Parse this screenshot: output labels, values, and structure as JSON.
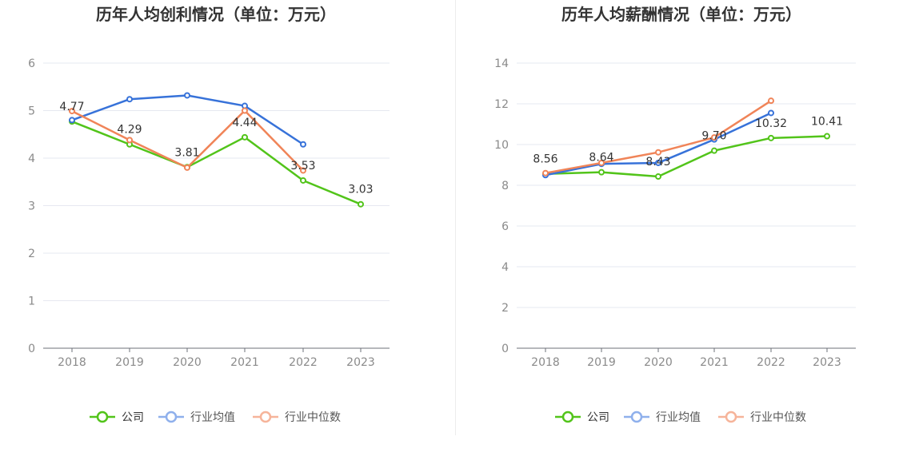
{
  "charts": [
    {
      "title": "历年人均创利情况（单位：万元）",
      "chart_data": {
        "type": "line",
        "title": "历年人均创利情况（单位：万元）",
        "categories": [
          "2018",
          "2019",
          "2020",
          "2021",
          "2022",
          "2023"
        ],
        "ylim": [
          0,
          6
        ],
        "yticks": [
          0,
          1,
          2,
          3,
          4,
          5,
          6
        ],
        "grid": true,
        "legend_position": "bottom",
        "series": [
          {
            "name": "公司",
            "color": "#52c41a",
            "values": [
              4.77,
              4.29,
              3.81,
              4.44,
              3.53,
              3.03
            ],
            "labels": [
              "4.77",
              "4.29",
              "3.81",
              "4.44",
              "3.53",
              "3.03"
            ]
          },
          {
            "name": "行业均值",
            "color": "#3772d9",
            "values": [
              4.8,
              5.24,
              5.32,
              5.1,
              4.29,
              null
            ]
          },
          {
            "name": "行业中位数",
            "color": "#f08458",
            "values": [
              4.99,
              4.38,
              3.8,
              5.0,
              3.74,
              null
            ]
          }
        ]
      }
    },
    {
      "title": "历年人均薪酬情况（单位：万元）",
      "chart_data": {
        "type": "line",
        "title": "历年人均薪酬情况（单位：万元）",
        "categories": [
          "2018",
          "2019",
          "2020",
          "2021",
          "2022",
          "2023"
        ],
        "ylim": [
          0,
          14
        ],
        "yticks": [
          0,
          2,
          4,
          6,
          8,
          10,
          12,
          14
        ],
        "grid": true,
        "legend_position": "bottom",
        "series": [
          {
            "name": "公司",
            "color": "#52c41a",
            "values": [
              8.56,
              8.64,
              8.43,
              9.7,
              10.32,
              10.41
            ],
            "labels": [
              "8.56",
              "8.64",
              "8.43",
              "9.70",
              "10.32",
              "10.41"
            ]
          },
          {
            "name": "行业均值",
            "color": "#3772d9",
            "values": [
              8.5,
              9.05,
              9.1,
              10.25,
              11.55,
              null
            ]
          },
          {
            "name": "行业中位数",
            "color": "#f08458",
            "values": [
              8.6,
              9.1,
              9.62,
              10.35,
              12.15,
              null
            ]
          }
        ]
      }
    }
  ],
  "legend_style": {
    "active_colors": [
      "#52c41a",
      "#3772d9",
      "#f08458"
    ],
    "faded_colors": [
      "#52c41a",
      "#8fb0ec",
      "#f6b49a"
    ]
  }
}
